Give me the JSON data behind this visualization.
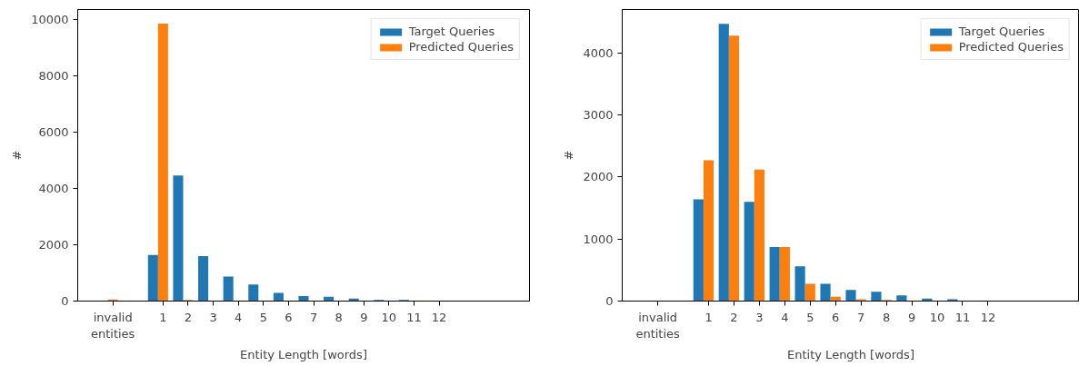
{
  "chart_data": [
    {
      "type": "bar",
      "xlabel": "Entity Length [words]",
      "ylabel": "#",
      "x": [
        -1,
        1,
        2,
        3,
        4,
        5,
        6,
        7,
        8,
        9,
        10,
        11,
        12
      ],
      "xlim": [
        -2.4,
        15.6
      ],
      "xticks": [
        {
          "value": -1,
          "label": "invalid\nentities"
        },
        1,
        2,
        3,
        4,
        5,
        6,
        7,
        8,
        9,
        10,
        11,
        12
      ],
      "ylim": [
        0,
        10350
      ],
      "yticks": [
        0,
        2000,
        4000,
        6000,
        8000,
        10000
      ],
      "grid": false,
      "legend": "top right",
      "series": [
        {
          "name": "Target Queries",
          "color": "#1f77b4",
          "values": [
            0,
            1640,
            4460,
            1600,
            870,
            590,
            290,
            180,
            150,
            90,
            40,
            40,
            0
          ]
        },
        {
          "name": "Predicted Queries",
          "color": "#ff7f0e",
          "values": [
            60,
            9850,
            40,
            0,
            0,
            0,
            0,
            0,
            0,
            0,
            0,
            0,
            0
          ]
        }
      ]
    },
    {
      "type": "bar",
      "xlabel": "Entity Length [words]",
      "ylabel": "#",
      "x": [
        -1,
        1,
        2,
        3,
        4,
        5,
        6,
        7,
        8,
        9,
        10,
        11,
        12
      ],
      "xlim": [
        -2.4,
        15.6
      ],
      "xticks": [
        {
          "value": -1,
          "label": "invalid\nentities"
        },
        1,
        2,
        3,
        4,
        5,
        6,
        7,
        8,
        9,
        10,
        11,
        12
      ],
      "ylim": [
        0,
        4700
      ],
      "yticks": [
        0,
        1000,
        2000,
        3000,
        4000
      ],
      "grid": false,
      "legend": "top right",
      "series": [
        {
          "name": "Target Queries",
          "color": "#1f77b4",
          "values": [
            0,
            1640,
            4470,
            1600,
            870,
            560,
            280,
            180,
            150,
            90,
            40,
            30,
            0
          ]
        },
        {
          "name": "Predicted Queries",
          "color": "#ff7f0e",
          "values": [
            null,
            2270,
            4280,
            2120,
            870,
            280,
            70,
            30,
            20,
            0,
            0,
            0,
            0
          ]
        }
      ]
    }
  ]
}
